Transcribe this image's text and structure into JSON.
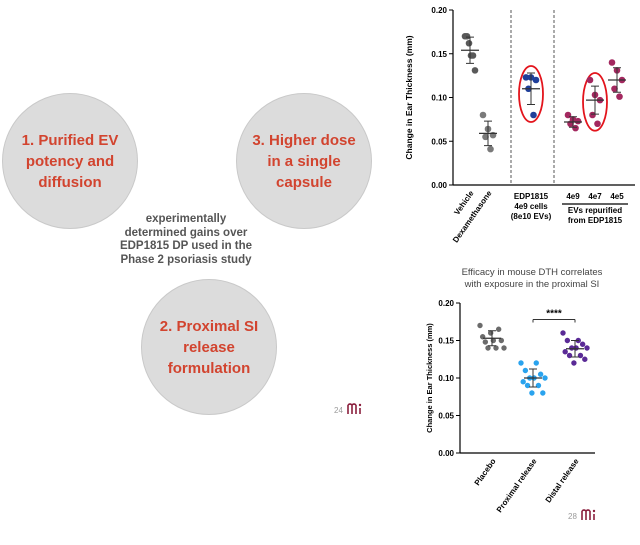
{
  "left_slide": {
    "circle_1": "1. Purified EV\npotency and\ndiffusion",
    "circle_3": "3. Higher dose\nin a single\ncapsule",
    "circle_2": "2. Proximal SI\nrelease\nformulation",
    "center_text": "experimentally\ndetermined gains over\nEDP1815 DP used in the\nPhase 2 psoriasis study",
    "page_number": "24"
  },
  "right_slide": {
    "page_number": "28"
  },
  "colors": {
    "circle_text": "#d2442f",
    "circle_fill": "#dcdcdc",
    "vehicle": "#595959",
    "dexamethasone": "#7a7a7a",
    "edp1815_cells": "#1f3f9a",
    "ev_repurified": "#a3285f",
    "highlight_ring": "#e3141c",
    "placebo": "#6b6b6b",
    "proximal": "#2aa3ee",
    "distal": "#5a2a96"
  },
  "chart_data": [
    {
      "type": "scatter",
      "ylabel": "Change in Ear Thickness (mm)",
      "ylim": [
        0,
        0.2
      ],
      "yticks": [
        "0.00",
        "0.05",
        "0.10",
        "0.15",
        "0.20"
      ],
      "categories": [
        "Vehicle",
        "Dexamethasone",
        "EDP1815\n4e9 cells\n(8e10 EVs)",
        "4e9",
        "4e7",
        "4e5"
      ],
      "group_label": "EVs repurified\nfrom EDP1815",
      "highlighted": [
        "EDP1815\n4e9 cells\n(8e10 EVs)",
        "4e7"
      ],
      "series": [
        {
          "category": "Vehicle",
          "values": [
            0.17,
            0.17,
            0.162,
            0.148,
            0.148,
            0.131
          ],
          "mean": 0.154,
          "sd": 0.015
        },
        {
          "category": "Dexamethasone",
          "values": [
            0.08,
            0.064,
            0.057,
            0.055,
            0.041
          ],
          "mean": 0.059,
          "sd": 0.014
        },
        {
          "category": "EDP1815\n4e9 cells\n(8e10 EVs)",
          "values": [
            0.123,
            0.123,
            0.12,
            0.11,
            0.08
          ],
          "mean": 0.11,
          "sd": 0.018
        },
        {
          "category": "4e9",
          "values": [
            0.08,
            0.075,
            0.073,
            0.07,
            0.065
          ],
          "mean": 0.072,
          "sd": 0.006
        },
        {
          "category": "4e7",
          "values": [
            0.12,
            0.103,
            0.097,
            0.08,
            0.07
          ],
          "mean": 0.097,
          "sd": 0.016
        },
        {
          "category": "4e5",
          "values": [
            0.14,
            0.131,
            0.12,
            0.11,
            0.101
          ],
          "mean": 0.12,
          "sd": 0.014
        }
      ]
    },
    {
      "type": "scatter",
      "title": "Efficacy in mouse DTH correlates\nwith exposure in the proximal SI",
      "ylabel": "Change in Ear Thickness (mm)",
      "ylim": [
        0,
        0.2
      ],
      "yticks": [
        "0.00",
        "0.05",
        "0.10",
        "0.15",
        "0.20"
      ],
      "categories": [
        "Placebo",
        "Proximal release",
        "Distal release"
      ],
      "significance": "****",
      "series": [
        {
          "category": "Placebo",
          "values": [
            0.17,
            0.165,
            0.16,
            0.155,
            0.15,
            0.15,
            0.148,
            0.14,
            0.14,
            0.14
          ],
          "mean": 0.153,
          "sd": 0.01
        },
        {
          "category": "Proximal release",
          "values": [
            0.12,
            0.12,
            0.11,
            0.105,
            0.1,
            0.1,
            0.1,
            0.095,
            0.09,
            0.09,
            0.08,
            0.08
          ],
          "mean": 0.1,
          "sd": 0.012
        },
        {
          "category": "Distal release",
          "values": [
            0.16,
            0.15,
            0.15,
            0.145,
            0.14,
            0.14,
            0.14,
            0.135,
            0.13,
            0.13,
            0.125,
            0.12
          ],
          "mean": 0.139,
          "sd": 0.011
        }
      ]
    }
  ]
}
